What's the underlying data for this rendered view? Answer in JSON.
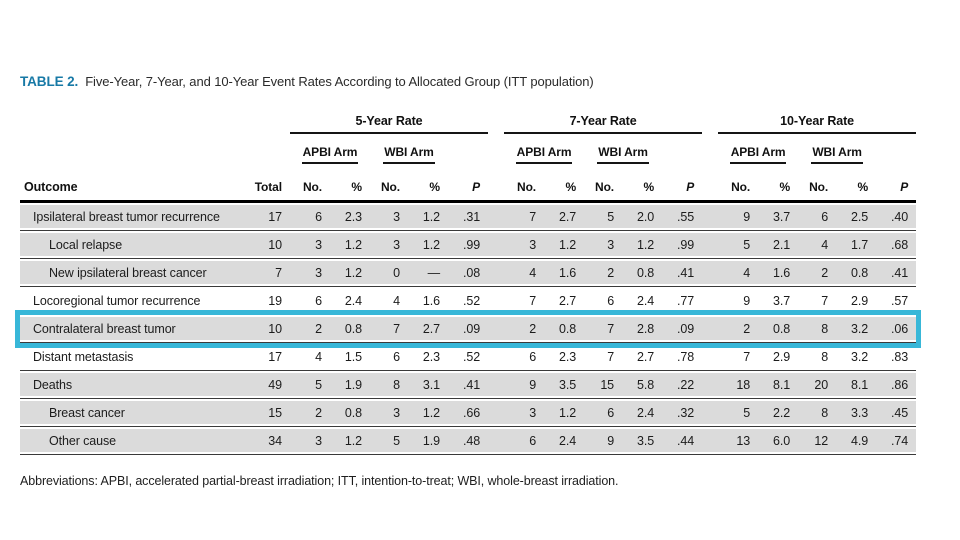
{
  "caption": {
    "label": "TABLE 2.",
    "text": "Five-Year, 7-Year, and 10-Year Event Rates According to Allocated Group (ITT population)"
  },
  "footnote": "Abbreviations: APBI, accelerated partial-breast irradiation; ITT, intention-to-treat; WBI, whole-breast irradiation.",
  "colors": {
    "accent_teal": "#1779A6",
    "highlight_cyan": "#38B7D8",
    "row_shade": "#DBDBDB"
  },
  "table": {
    "group_headers": [
      "5-Year Rate",
      "7-Year Rate",
      "10-Year Rate"
    ],
    "arm_headers": [
      "APBI Arm",
      "WBI Arm"
    ],
    "col_headers": {
      "outcome": "Outcome",
      "total": "Total",
      "no": "No.",
      "pct": "%",
      "p": "P"
    },
    "highlighted_row": "Contralateral breast tumor",
    "rows": [
      {
        "label": "Ipsilateral breast tumor recurrence",
        "indent": false,
        "shaded": true,
        "highlight": false,
        "total": "17",
        "y5": [
          "6",
          "2.3",
          "3",
          "1.2",
          ".31"
        ],
        "y7": [
          "7",
          "2.7",
          "5",
          "2.0",
          ".55"
        ],
        "y10": [
          "9",
          "3.7",
          "6",
          "2.5",
          ".40"
        ]
      },
      {
        "label": "Local relapse",
        "indent": true,
        "shaded": true,
        "highlight": false,
        "total": "10",
        "y5": [
          "3",
          "1.2",
          "3",
          "1.2",
          ".99"
        ],
        "y7": [
          "3",
          "1.2",
          "3",
          "1.2",
          ".99"
        ],
        "y10": [
          "5",
          "2.1",
          "4",
          "1.7",
          ".68"
        ]
      },
      {
        "label": "New ipsilateral breast cancer",
        "indent": true,
        "shaded": true,
        "highlight": false,
        "total": "7",
        "y5": [
          "3",
          "1.2",
          "0",
          "—",
          ".08"
        ],
        "y7": [
          "4",
          "1.6",
          "2",
          "0.8",
          ".41"
        ],
        "y10": [
          "4",
          "1.6",
          "2",
          "0.8",
          ".41"
        ]
      },
      {
        "label": "Locoregional tumor recurrence",
        "indent": false,
        "shaded": false,
        "highlight": false,
        "total": "19",
        "y5": [
          "6",
          "2.4",
          "4",
          "1.6",
          ".52"
        ],
        "y7": [
          "7",
          "2.7",
          "6",
          "2.4",
          ".77"
        ],
        "y10": [
          "9",
          "3.7",
          "7",
          "2.9",
          ".57"
        ]
      },
      {
        "label": "Contralateral breast tumor",
        "indent": false,
        "shaded": true,
        "highlight": true,
        "total": "10",
        "y5": [
          "2",
          "0.8",
          "7",
          "2.7",
          ".09"
        ],
        "y7": [
          "2",
          "0.8",
          "7",
          "2.8",
          ".09"
        ],
        "y10": [
          "2",
          "0.8",
          "8",
          "3.2",
          ".06"
        ]
      },
      {
        "label": "Distant metastasis",
        "indent": false,
        "shaded": false,
        "highlight": false,
        "total": "17",
        "y5": [
          "4",
          "1.5",
          "6",
          "2.3",
          ".52"
        ],
        "y7": [
          "6",
          "2.3",
          "7",
          "2.7",
          ".78"
        ],
        "y10": [
          "7",
          "2.9",
          "8",
          "3.2",
          ".83"
        ]
      },
      {
        "label": "Deaths",
        "indent": false,
        "shaded": true,
        "highlight": false,
        "total": "49",
        "y5": [
          "5",
          "1.9",
          "8",
          "3.1",
          ".41"
        ],
        "y7": [
          "9",
          "3.5",
          "15",
          "5.8",
          ".22"
        ],
        "y10": [
          "18",
          "8.1",
          "20",
          "8.1",
          ".86"
        ]
      },
      {
        "label": "Breast cancer",
        "indent": true,
        "shaded": true,
        "highlight": false,
        "total": "15",
        "y5": [
          "2",
          "0.8",
          "3",
          "1.2",
          ".66"
        ],
        "y7": [
          "3",
          "1.2",
          "6",
          "2.4",
          ".32"
        ],
        "y10": [
          "5",
          "2.2",
          "8",
          "3.3",
          ".45"
        ]
      },
      {
        "label": "Other cause",
        "indent": true,
        "shaded": true,
        "highlight": false,
        "total": "34",
        "y5": [
          "3",
          "1.2",
          "5",
          "1.9",
          ".48"
        ],
        "y7": [
          "6",
          "2.4",
          "9",
          "3.5",
          ".44"
        ],
        "y10": [
          "13",
          "6.0",
          "12",
          "4.9",
          ".74"
        ]
      }
    ]
  }
}
